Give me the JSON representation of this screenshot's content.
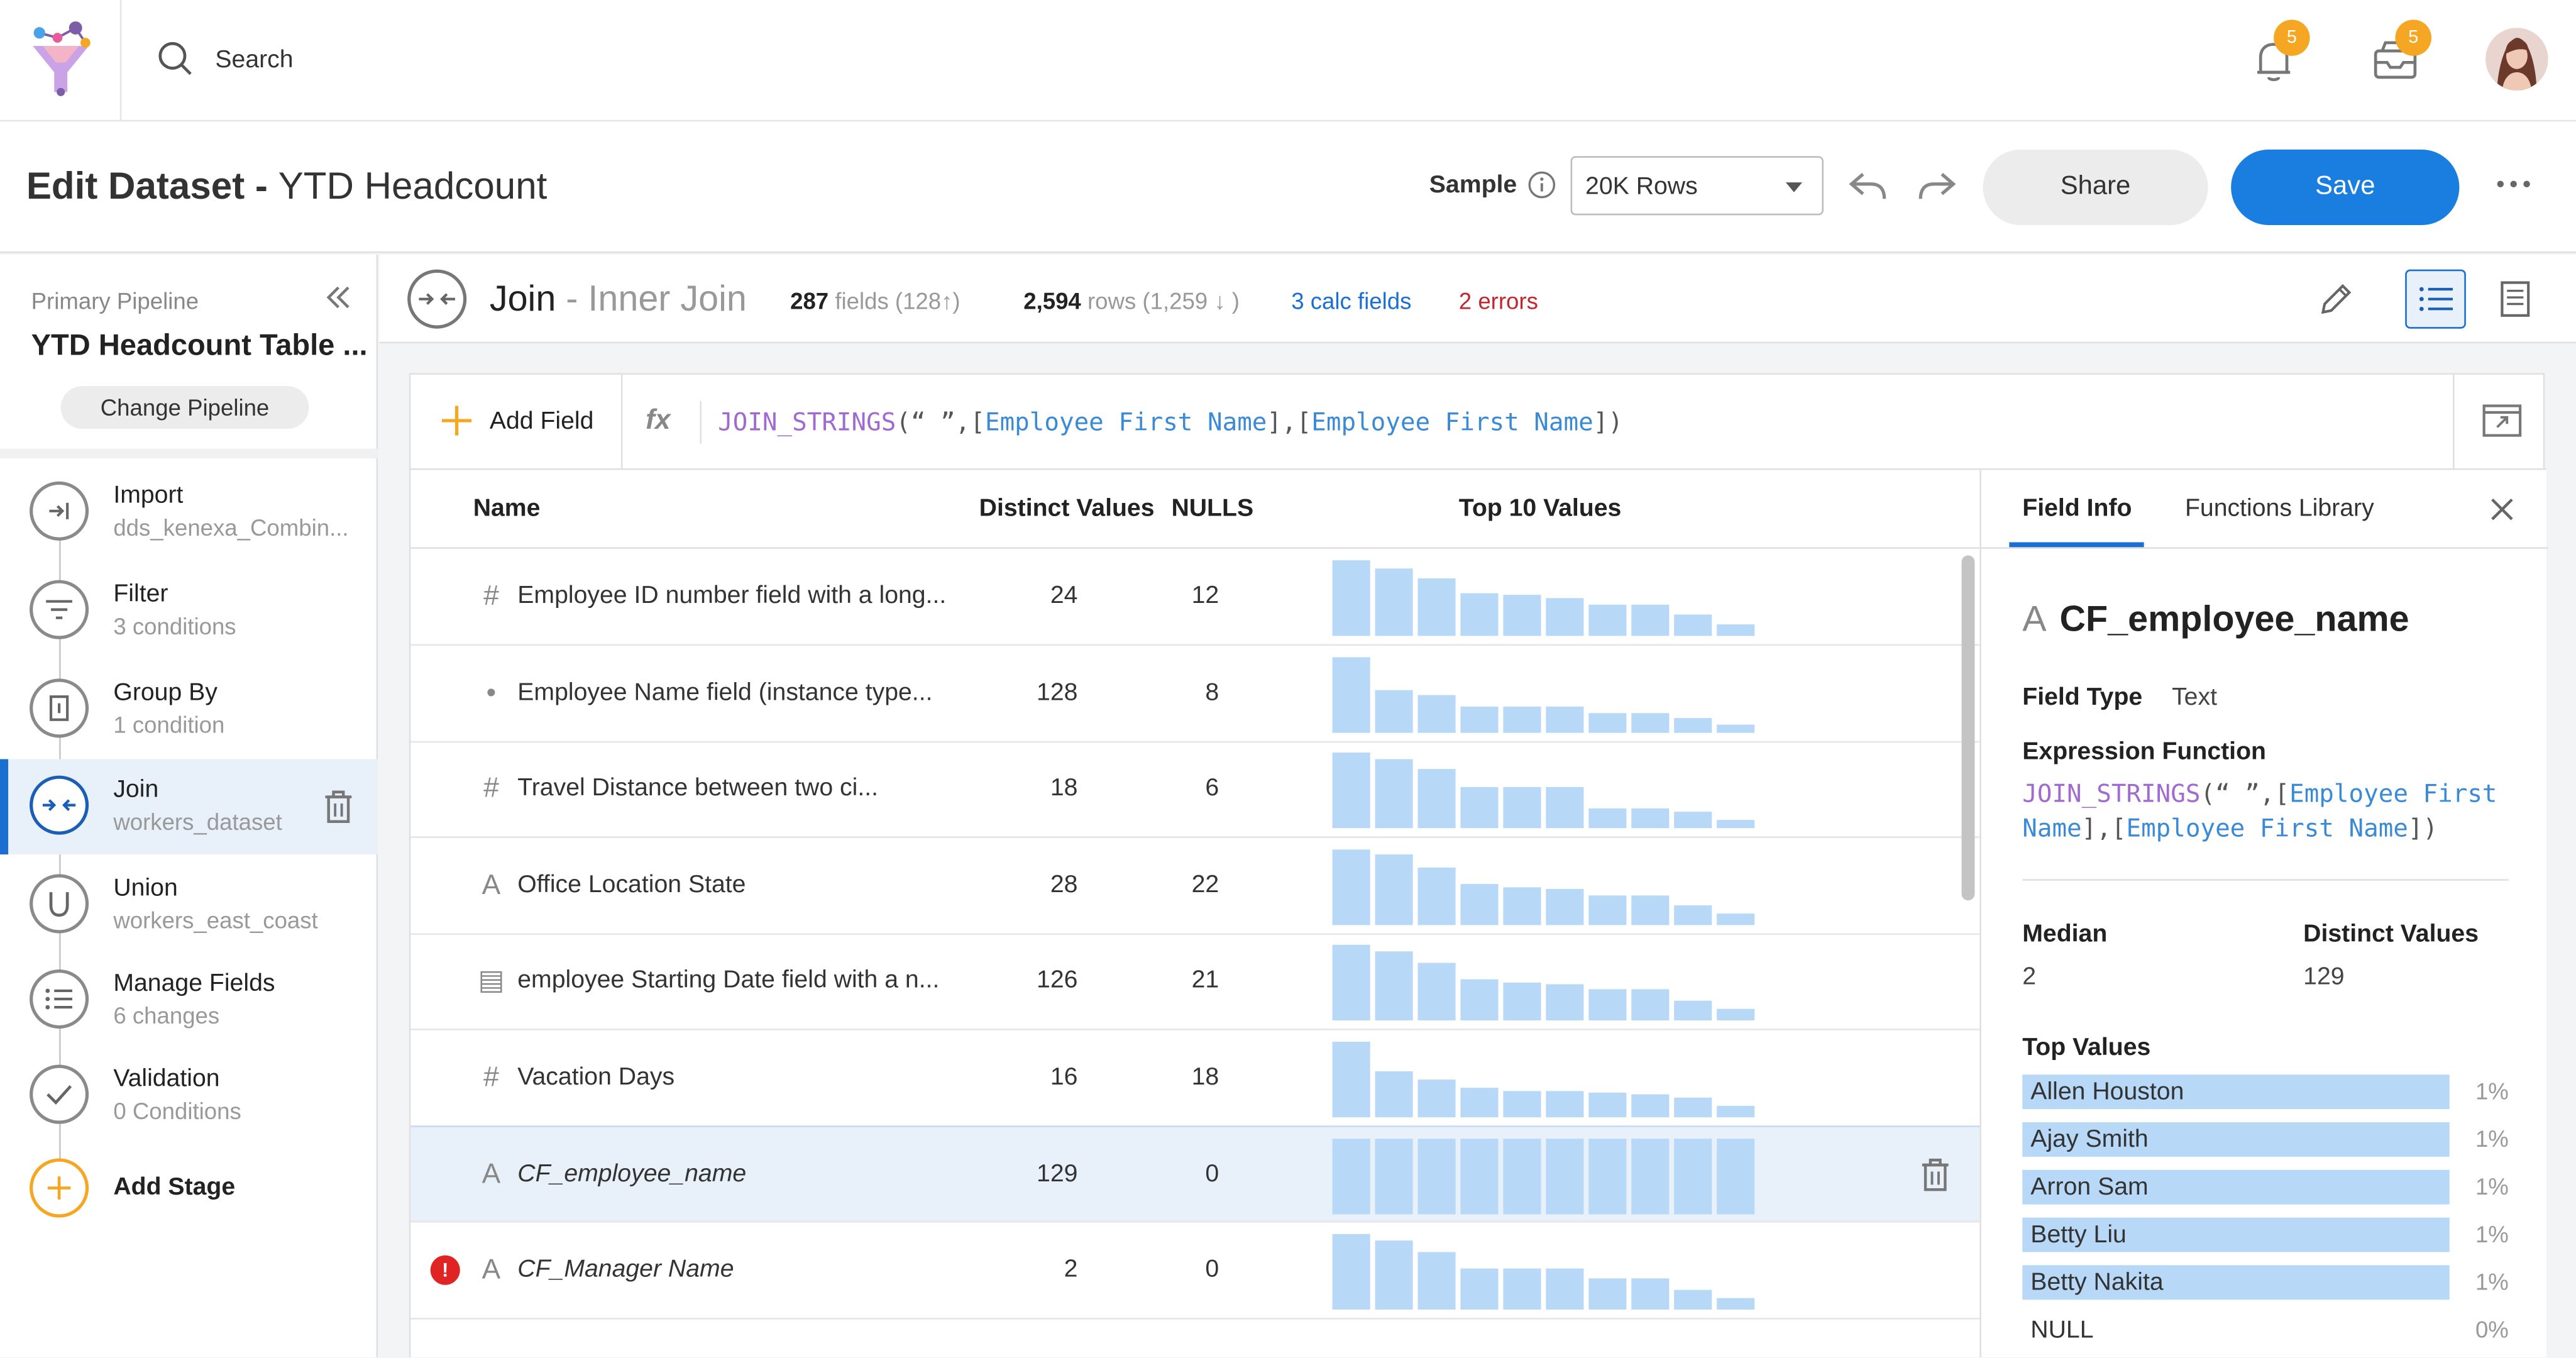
{
  "nav": {
    "search_placeholder": "Search",
    "notifications_count": "5",
    "inbox_count": "5"
  },
  "header": {
    "title_prefix": "Edit Dataset - ",
    "title_name": "YTD Headcount",
    "sample_label": "Sample",
    "sample_value": "20K Rows",
    "share_label": "Share",
    "save_label": "Save"
  },
  "sidebar": {
    "pipeline_label": "Primary Pipeline",
    "pipeline_name": "YTD Headcount Table ...",
    "change_label": "Change Pipeline",
    "stages": [
      {
        "title": "Import",
        "sub": "dds_kenexa_Combin...",
        "icon": "import-icon"
      },
      {
        "title": "Filter",
        "sub": "3 conditions",
        "icon": "filter-icon"
      },
      {
        "title": "Group By",
        "sub": "1 condition",
        "icon": "group-by-icon"
      },
      {
        "title": "Join",
        "sub": "workers_dataset",
        "icon": "join-icon"
      },
      {
        "title": "Union",
        "sub": "workers_east_coast",
        "icon": "union-icon"
      },
      {
        "title": "Manage Fields",
        "sub": "6 changes",
        "icon": "list-icon"
      },
      {
        "title": "Validation",
        "sub": "0 Conditions",
        "icon": "check-icon"
      },
      {
        "title": "Add Stage",
        "sub": "",
        "icon": "plus-icon"
      }
    ]
  },
  "joinbar": {
    "title": "Join",
    "subtitle": " - Inner Join",
    "fields_count": "287",
    "fields_label": " fields (128",
    "rows_count": "2,594",
    "rows_label": " rows (1,259",
    "calc_fields": "3 calc fields",
    "errors": "2 errors"
  },
  "formula_bar": {
    "add_field_label": "Add Field",
    "fx_label": "fx",
    "fn": "JOIN_STRINGS",
    "open": "(“ ”,[",
    "field1": "Employee First Name",
    "mid": "],[",
    "field2": "Employee First Name",
    "close": "])"
  },
  "table": {
    "headers": {
      "name": "Name",
      "distinct": "Distinct Values",
      "nulls": "NULLS",
      "top10": "Top 10 Values"
    },
    "rows": [
      {
        "type": "#",
        "name": "Employee ID number field with a long...",
        "distinct": "24",
        "nulls": "12",
        "error": false,
        "italic": false,
        "bars": [
          0.95,
          0.85,
          0.72,
          0.55,
          0.52,
          0.48,
          0.4,
          0.4,
          0.28,
          0.14
        ]
      },
      {
        "type": "•",
        "name": "Employee Name field (instance type...",
        "distinct": "128",
        "nulls": "8",
        "error": false,
        "italic": false,
        "bars": [
          0.95,
          0.55,
          0.48,
          0.33,
          0.33,
          0.33,
          0.25,
          0.25,
          0.18,
          0.1
        ]
      },
      {
        "type": "#",
        "name": "Travel Distance between two ci...",
        "distinct": "18",
        "nulls": "6",
        "error": false,
        "italic": false,
        "bars": [
          0.95,
          0.88,
          0.75,
          0.52,
          0.52,
          0.52,
          0.26,
          0.26,
          0.2,
          0.1
        ]
      },
      {
        "type": "A",
        "name": "Office Location State",
        "distinct": "28",
        "nulls": "22",
        "error": false,
        "italic": false,
        "bars": [
          0.95,
          0.9,
          0.72,
          0.52,
          0.48,
          0.45,
          0.38,
          0.38,
          0.26,
          0.14
        ]
      },
      {
        "type": "▤",
        "name": "employee Starting Date field with a n...",
        "distinct": "126",
        "nulls": "21",
        "error": false,
        "italic": false,
        "bars": [
          0.95,
          0.88,
          0.72,
          0.52,
          0.48,
          0.45,
          0.4,
          0.4,
          0.26,
          0.14
        ]
      },
      {
        "type": "#",
        "name": "Vacation Days",
        "distinct": "16",
        "nulls": "18",
        "error": false,
        "italic": false,
        "bars": [
          0.95,
          0.58,
          0.48,
          0.38,
          0.34,
          0.34,
          0.32,
          0.3,
          0.24,
          0.14
        ]
      },
      {
        "type": "A",
        "name": "CF_employee_name",
        "distinct": "129",
        "nulls": "0",
        "error": false,
        "italic": true,
        "bars": [
          0.95,
          0.95,
          0.95,
          0.95,
          0.95,
          0.95,
          0.95,
          0.95,
          0.95,
          0.95
        ]
      },
      {
        "type": "A",
        "name": "CF_Manager Name",
        "distinct": "2",
        "nulls": "0",
        "error": true,
        "italic": true,
        "bars": [
          0.95,
          0.88,
          0.72,
          0.52,
          0.52,
          0.52,
          0.4,
          0.4,
          0.26,
          0.14
        ]
      }
    ]
  },
  "field_info": {
    "tab_info": "Field Info",
    "tab_functions": "Functions Library",
    "type_glyph": "A",
    "name": "CF_employee_name",
    "type_label": "Field Type",
    "type_value": "Text",
    "expr_label": "Expression Function",
    "median_label": "Median",
    "median_value": "2",
    "distinct_label": "Distinct Values",
    "distinct_value": "129",
    "top_values_label": "Top Values",
    "top_values": [
      {
        "name": "Allen Houston",
        "pct": "1%",
        "fill": 0.88
      },
      {
        "name": "Ajay Smith",
        "pct": "1%",
        "fill": 0.88
      },
      {
        "name": "Arron Sam",
        "pct": "1%",
        "fill": 0.88
      },
      {
        "name": "Betty Liu",
        "pct": "1%",
        "fill": 0.88
      },
      {
        "name": "Betty Nakita",
        "pct": "1%",
        "fill": 0.88
      },
      {
        "name": "NULL",
        "pct": "0%",
        "fill": 0
      }
    ]
  },
  "colors": {
    "accent": "#1a7ee0",
    "bar": "#b8d8f8",
    "error": "#e02424",
    "badge": "#f5a623"
  }
}
